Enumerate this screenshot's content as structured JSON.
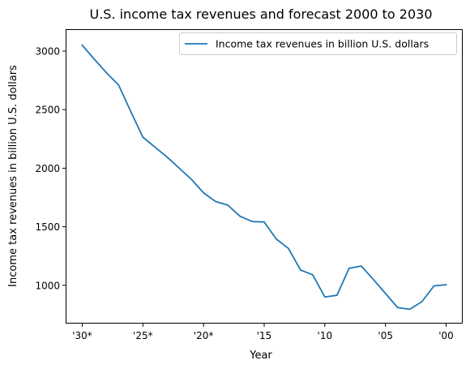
{
  "chart_data": {
    "type": "line",
    "title": "U.S. income tax revenues and forecast 2000 to 2030",
    "xlabel": "Year",
    "ylabel": "Income tax revenues in billion U.S. dollars",
    "x_reversed": true,
    "xlim": [
      2031.3,
      1998.7
    ],
    "ylim": [
      680,
      3180
    ],
    "x_ticks": [
      {
        "value": 2030,
        "label": "'30*"
      },
      {
        "value": 2025,
        "label": "'25*"
      },
      {
        "value": 2020,
        "label": "'20*"
      },
      {
        "value": 2015,
        "label": "'15"
      },
      {
        "value": 2010,
        "label": "'10"
      },
      {
        "value": 2005,
        "label": "'05"
      },
      {
        "value": 2000,
        "label": "'00"
      }
    ],
    "y_ticks": [
      {
        "value": 1000,
        "label": "1000"
      },
      {
        "value": 1500,
        "label": "1500"
      },
      {
        "value": 2000,
        "label": "2000"
      },
      {
        "value": 2500,
        "label": "2500"
      },
      {
        "value": 3000,
        "label": "3000"
      }
    ],
    "grid": false,
    "legend_position": "top-right",
    "series": [
      {
        "name": "Income tax revenues in billion U.S. dollars",
        "color": "#1f77b4",
        "x": [
          2030,
          2029,
          2028,
          2027,
          2026,
          2025,
          2024,
          2023,
          2022,
          2021,
          2020,
          2019,
          2018,
          2017,
          2016,
          2015,
          2014,
          2013,
          2012,
          2011,
          2010,
          2009,
          2008,
          2007,
          2006,
          2005,
          2004,
          2003,
          2002,
          2001,
          2000
        ],
        "y": [
          3050,
          2930,
          2815,
          2710,
          2485,
          2265,
          2180,
          2095,
          2000,
          1905,
          1790,
          1715,
          1685,
          1590,
          1545,
          1540,
          1395,
          1315,
          1130,
          1090,
          900,
          915,
          1145,
          1165,
          1050,
          930,
          810,
          795,
          860,
          995,
          1005
        ]
      }
    ]
  }
}
